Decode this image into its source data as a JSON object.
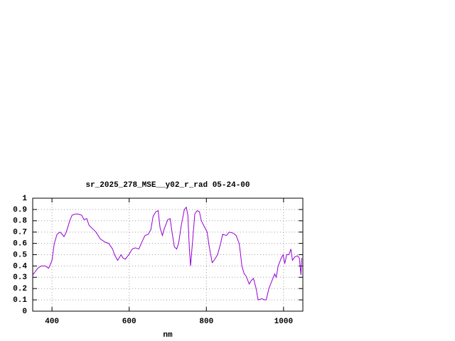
{
  "chart_data": {
    "type": "line",
    "title": "sr_2025_278_MSE__y02_r_rad 05-24-00",
    "x_label": "nm",
    "x": [
      350,
      363,
      372,
      383,
      391,
      394,
      400,
      406,
      413,
      420,
      424,
      431,
      437,
      446,
      452,
      461,
      468,
      477,
      483,
      490,
      496,
      505,
      514,
      525,
      538,
      547,
      557,
      562,
      570,
      579,
      584,
      590,
      599,
      608,
      616,
      625,
      634,
      641,
      649,
      656,
      662,
      669,
      675,
      680,
      686,
      691,
      700,
      706,
      711,
      717,
      723,
      728,
      735,
      743,
      748,
      752,
      756,
      759,
      765,
      770,
      776,
      782,
      787,
      796,
      802,
      807,
      815,
      820,
      829,
      837,
      842,
      852,
      859,
      870,
      877,
      885,
      888,
      892,
      898,
      903,
      911,
      916,
      922,
      929,
      934,
      944,
      951,
      955,
      962,
      970,
      977,
      981,
      986,
      994,
      999,
      1003,
      1008,
      1014,
      1019,
      1023,
      1029,
      1036,
      1041,
      1045,
      1047
    ],
    "series": [
      {
        "name": "sr_2025_278_MSE__y02_r_rad",
        "color": "#9400d3",
        "values": [
          0.32,
          0.38,
          0.4,
          0.4,
          0.38,
          0.4,
          0.45,
          0.6,
          0.68,
          0.7,
          0.69,
          0.66,
          0.7,
          0.8,
          0.85,
          0.86,
          0.86,
          0.85,
          0.81,
          0.82,
          0.76,
          0.73,
          0.7,
          0.64,
          0.61,
          0.6,
          0.55,
          0.5,
          0.45,
          0.5,
          0.47,
          0.46,
          0.5,
          0.55,
          0.56,
          0.55,
          0.62,
          0.67,
          0.68,
          0.72,
          0.84,
          0.88,
          0.89,
          0.74,
          0.67,
          0.73,
          0.81,
          0.82,
          0.7,
          0.57,
          0.55,
          0.6,
          0.76,
          0.9,
          0.92,
          0.85,
          0.55,
          0.4,
          0.65,
          0.86,
          0.89,
          0.88,
          0.8,
          0.74,
          0.7,
          0.58,
          0.43,
          0.45,
          0.5,
          0.6,
          0.68,
          0.67,
          0.7,
          0.69,
          0.67,
          0.6,
          0.52,
          0.4,
          0.33,
          0.31,
          0.24,
          0.27,
          0.29,
          0.2,
          0.1,
          0.11,
          0.1,
          0.1,
          0.2,
          0.27,
          0.33,
          0.3,
          0.4,
          0.47,
          0.5,
          0.42,
          0.5,
          0.5,
          0.55,
          0.45,
          0.48,
          0.49,
          0.47,
          0.32,
          0.47
        ]
      }
    ],
    "xlim": [
      350,
      1050
    ],
    "ylim": [
      0,
      1
    ],
    "xticks": [
      400,
      600,
      800,
      1000
    ],
    "yticks": [
      0,
      0.1,
      0.2,
      0.3,
      0.4,
      0.5,
      0.6,
      0.7,
      0.8,
      0.9,
      1
    ],
    "grid": true
  }
}
